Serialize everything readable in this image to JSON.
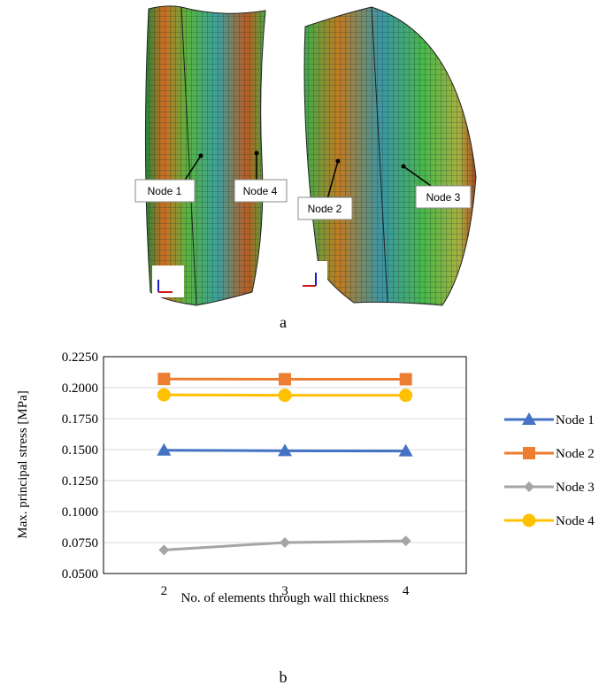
{
  "figure_a": {
    "labels": [
      "Node 1",
      "Node 4",
      "Node 2",
      "Node 3"
    ],
    "caption": "a"
  },
  "chart_data": {
    "type": "line",
    "x_label": "No. of elements through wall thickness",
    "y_label": "Max. principal stress [MPa]",
    "categories": [
      "2",
      "3",
      "4"
    ],
    "series": [
      {
        "name": "Node 1",
        "color": "#4472c4",
        "marker": "triangle",
        "values": [
          0.1495,
          0.149,
          0.1488
        ]
      },
      {
        "name": "Node 2",
        "color": "#ed7d31",
        "marker": "square",
        "values": [
          0.207,
          0.2068,
          0.2068
        ]
      },
      {
        "name": "Node 3",
        "color": "#a5a5a5",
        "marker": "diamond",
        "values": [
          0.069,
          0.075,
          0.0763
        ]
      },
      {
        "name": "Node 4",
        "color": "#ffc000",
        "marker": "circle",
        "values": [
          0.1942,
          0.1938,
          0.1938
        ]
      }
    ],
    "ylim": [
      0.05,
      0.225
    ],
    "yticks": [
      {
        "value": 0.05,
        "label": "0.0500"
      },
      {
        "value": 0.075,
        "label": "0.0750"
      },
      {
        "value": 0.1,
        "label": "0.1000"
      },
      {
        "value": 0.125,
        "label": "0.1250"
      },
      {
        "value": 0.15,
        "label": "0.1500"
      },
      {
        "value": 0.175,
        "label": "0.1750"
      },
      {
        "value": 0.2,
        "label": "0.2000"
      },
      {
        "value": 0.225,
        "label": "0.2250"
      }
    ],
    "grid": true,
    "legend": "right"
  },
  "caption_b": "b"
}
